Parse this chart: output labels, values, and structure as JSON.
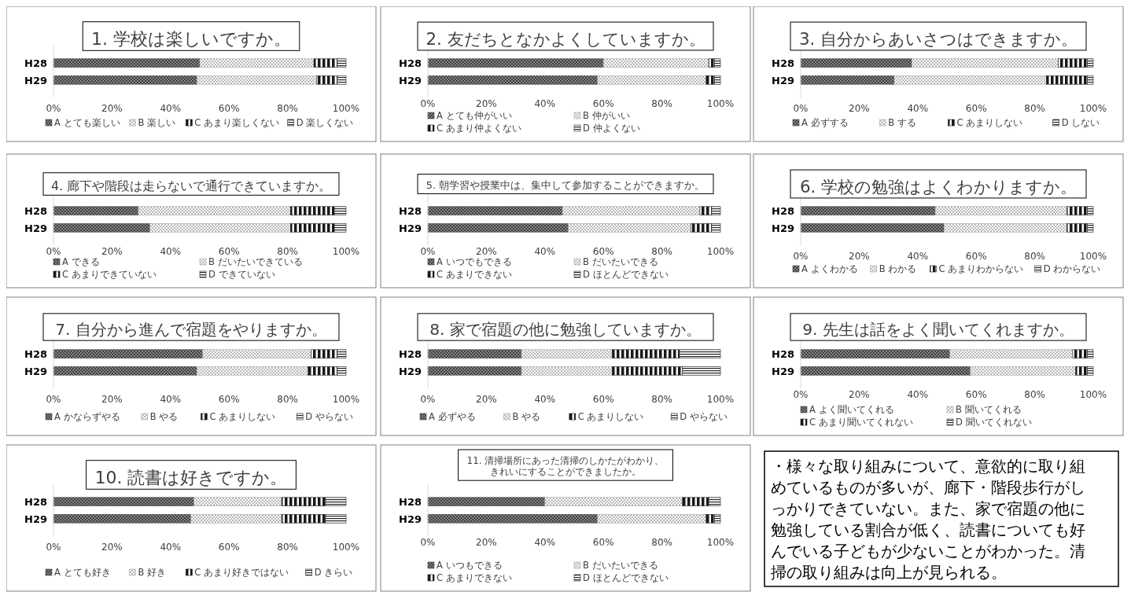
{
  "chart_data": [
    {
      "type": "bar",
      "orientation": "horizontal",
      "stacked": true,
      "title": "1. 学校は楽しいですか。",
      "categories": [
        "H28",
        "H29"
      ],
      "legend": "bottom",
      "xlim": [
        0,
        100
      ],
      "xticks": [
        {
          "value": 0,
          "label": "0%"
        },
        {
          "value": 20,
          "label": "20%"
        },
        {
          "value": 40,
          "label": "40%"
        },
        {
          "value": 60,
          "label": "60%"
        },
        {
          "value": 80,
          "label": "80%"
        },
        {
          "value": 100,
          "label": "100%"
        }
      ],
      "series": [
        {
          "name": "A とても楽しい",
          "color": "#404040",
          "values": [
            50,
            49
          ]
        },
        {
          "name": "B 楽しい",
          "color": "#a6a6a6",
          "values": [
            39,
            41
          ]
        },
        {
          "name": "C あまり楽しくない",
          "color": "#1a1a1a",
          "values": [
            8,
            7
          ]
        },
        {
          "name": "D 楽しくない",
          "color": "#262626",
          "values": [
            3,
            3
          ]
        }
      ]
    },
    {
      "type": "bar",
      "orientation": "horizontal",
      "stacked": true,
      "title": "2. 友だちとなかよくしていますか。",
      "categories": [
        "H28",
        "H29"
      ],
      "legend": "bottom",
      "xlim": [
        0,
        100
      ],
      "xticks": [
        {
          "value": 0,
          "label": "0%"
        },
        {
          "value": 20,
          "label": "20%"
        },
        {
          "value": 40,
          "label": "40%"
        },
        {
          "value": 60,
          "label": "60%"
        },
        {
          "value": 80,
          "label": "80%"
        },
        {
          "value": 100,
          "label": "100%"
        }
      ],
      "series": [
        {
          "name": "A とても仲がいい",
          "color": "#404040",
          "values": [
            60,
            58
          ]
        },
        {
          "name": "B 仲がいい",
          "color": "#a6a6a6",
          "values": [
            36,
            37
          ]
        },
        {
          "name": "C あまり仲よくない",
          "color": "#1a1a1a",
          "values": [
            2,
            3
          ]
        },
        {
          "name": "D 仲よくない",
          "color": "#262626",
          "values": [
            2,
            2
          ]
        }
      ]
    },
    {
      "type": "bar",
      "orientation": "horizontal",
      "stacked": true,
      "title": "3. 自分からあいさつはできますか。",
      "categories": [
        "H28",
        "H29"
      ],
      "legend": "bottom",
      "xlim": [
        0,
        100
      ],
      "xticks": [
        {
          "value": 0,
          "label": "0%"
        },
        {
          "value": 20,
          "label": "20%"
        },
        {
          "value": 40,
          "label": "40%"
        },
        {
          "value": 60,
          "label": "60%"
        },
        {
          "value": 80,
          "label": "80%"
        },
        {
          "value": 100,
          "label": "100%"
        }
      ],
      "series": [
        {
          "name": "A 必ずする",
          "color": "#404040",
          "values": [
            38,
            32
          ]
        },
        {
          "name": "B する",
          "color": "#a6a6a6",
          "values": [
            50,
            52
          ]
        },
        {
          "name": "C あまりしない",
          "color": "#1a1a1a",
          "values": [
            10,
            14
          ]
        },
        {
          "name": "D しない",
          "color": "#262626",
          "values": [
            2,
            2
          ]
        }
      ]
    },
    {
      "type": "bar",
      "orientation": "horizontal",
      "stacked": true,
      "title": "4. 廊下や階段は走らないで通行できていますか。",
      "categories": [
        "H28",
        "H29"
      ],
      "legend": "bottom",
      "xlim": [
        0,
        100
      ],
      "xticks": [
        {
          "value": 0,
          "label": "0%"
        },
        {
          "value": 20,
          "label": "20%"
        },
        {
          "value": 40,
          "label": "40%"
        },
        {
          "value": 60,
          "label": "60%"
        },
        {
          "value": 80,
          "label": "80%"
        },
        {
          "value": 100,
          "label": "100%"
        }
      ],
      "series": [
        {
          "name": "A できる",
          "color": "#404040",
          "values": [
            29,
            33
          ]
        },
        {
          "name": "B だいたいできている",
          "color": "#a6a6a6",
          "values": [
            52,
            48
          ]
        },
        {
          "name": "C あまりできていない",
          "color": "#1a1a1a",
          "values": [
            15,
            15
          ]
        },
        {
          "name": "D できていない",
          "color": "#262626",
          "values": [
            4,
            4
          ]
        }
      ]
    },
    {
      "type": "bar",
      "orientation": "horizontal",
      "stacked": true,
      "title": "5. 朝学習や授業中は、集中して参加することができますか。",
      "categories": [
        "H28",
        "H29"
      ],
      "legend": "bottom",
      "xlim": [
        0,
        100
      ],
      "xticks": [
        {
          "value": 0,
          "label": "0%"
        },
        {
          "value": 20,
          "label": "20%"
        },
        {
          "value": 40,
          "label": "40%"
        },
        {
          "value": 60,
          "label": "60%"
        },
        {
          "value": 80,
          "label": "80%"
        },
        {
          "value": 100,
          "label": "100%"
        }
      ],
      "series": [
        {
          "name": "A いつでもできる",
          "color": "#404040",
          "values": [
            46,
            48
          ]
        },
        {
          "name": "B だいたいできる",
          "color": "#a6a6a6",
          "values": [
            47,
            42
          ]
        },
        {
          "name": "C あまりできない",
          "color": "#1a1a1a",
          "values": [
            4,
            7
          ]
        },
        {
          "name": "D ほとんどできない",
          "color": "#262626",
          "values": [
            3,
            3
          ]
        }
      ]
    },
    {
      "type": "bar",
      "orientation": "horizontal",
      "stacked": true,
      "title": "6. 学校の勉強はよくわかりますか。",
      "categories": [
        "H28",
        "H29"
      ],
      "legend": "bottom",
      "xlim": [
        0,
        100
      ],
      "xticks": [
        {
          "value": 0,
          "label": "0%"
        },
        {
          "value": 20,
          "label": "20%"
        },
        {
          "value": 40,
          "label": "40%"
        },
        {
          "value": 60,
          "label": "60%"
        },
        {
          "value": 80,
          "label": "80%"
        },
        {
          "value": 100,
          "label": "100%"
        }
      ],
      "series": [
        {
          "name": "A よくわかる",
          "color": "#404040",
          "values": [
            46,
            49
          ]
        },
        {
          "name": "B わかる",
          "color": "#a6a6a6",
          "values": [
            45,
            42
          ]
        },
        {
          "name": "C あまりわからない",
          "color": "#1a1a1a",
          "values": [
            7,
            7
          ]
        },
        {
          "name": "D わからない",
          "color": "#262626",
          "values": [
            2,
            2
          ]
        }
      ]
    },
    {
      "type": "bar",
      "orientation": "horizontal",
      "stacked": true,
      "title": "7. 自分から進んで宿題をやりますか。",
      "categories": [
        "H28",
        "H29"
      ],
      "legend": "bottom",
      "xlim": [
        0,
        100
      ],
      "xticks": [
        {
          "value": 0,
          "label": "0%"
        },
        {
          "value": 20,
          "label": "20%"
        },
        {
          "value": 40,
          "label": "40%"
        },
        {
          "value": 60,
          "label": "60%"
        },
        {
          "value": 80,
          "label": "80%"
        },
        {
          "value": 100,
          "label": "100%"
        }
      ],
      "series": [
        {
          "name": "A かならずやる",
          "color": "#404040",
          "values": [
            51,
            49
          ]
        },
        {
          "name": "B やる",
          "color": "#a6a6a6",
          "values": [
            37,
            38
          ]
        },
        {
          "name": "C あまりしない",
          "color": "#1a1a1a",
          "values": [
            9,
            10
          ]
        },
        {
          "name": "D やらない",
          "color": "#262626",
          "values": [
            3,
            3
          ]
        }
      ]
    },
    {
      "type": "bar",
      "orientation": "horizontal",
      "stacked": true,
      "title": "8. 家で宿題の他に勉強していますか。",
      "categories": [
        "H28",
        "H29"
      ],
      "legend": "bottom",
      "xlim": [
        0,
        100
      ],
      "xticks": [
        {
          "value": 0,
          "label": "0%"
        },
        {
          "value": 20,
          "label": "20%"
        },
        {
          "value": 40,
          "label": "40%"
        },
        {
          "value": 60,
          "label": "60%"
        },
        {
          "value": 80,
          "label": "80%"
        },
        {
          "value": 100,
          "label": "100%"
        }
      ],
      "series": [
        {
          "name": "A 必ずやる",
          "color": "#404040",
          "values": [
            32,
            32
          ]
        },
        {
          "name": "B やる",
          "color": "#a6a6a6",
          "values": [
            31,
            31
          ]
        },
        {
          "name": "C あまりしない",
          "color": "#1a1a1a",
          "values": [
            23,
            24
          ]
        },
        {
          "name": "D やらない",
          "color": "#262626",
          "values": [
            14,
            13
          ]
        }
      ]
    },
    {
      "type": "bar",
      "orientation": "horizontal",
      "stacked": true,
      "title": "9. 先生は話をよく聞いてくれますか。",
      "categories": [
        "H28",
        "H29"
      ],
      "legend": "bottom",
      "xlim": [
        0,
        100
      ],
      "xticks": [
        {
          "value": 0,
          "label": "0%"
        },
        {
          "value": 20,
          "label": "20%"
        },
        {
          "value": 40,
          "label": "40%"
        },
        {
          "value": 60,
          "label": "60%"
        },
        {
          "value": 80,
          "label": "80%"
        },
        {
          "value": 100,
          "label": "100%"
        }
      ],
      "series": [
        {
          "name": "A よく聞いてくれる",
          "color": "#404040",
          "values": [
            51,
            58
          ]
        },
        {
          "name": "B 聞いてくれる",
          "color": "#a6a6a6",
          "values": [
            42,
            36
          ]
        },
        {
          "name": "C あまり聞いてくれない",
          "color": "#1a1a1a",
          "values": [
            5,
            4
          ]
        },
        {
          "name": "D 聞いてくれない",
          "color": "#262626",
          "values": [
            2,
            2
          ]
        }
      ]
    },
    {
      "type": "bar",
      "orientation": "horizontal",
      "stacked": true,
      "title": "10. 読書は好きですか。",
      "categories": [
        "H28",
        "H29"
      ],
      "legend": "bottom",
      "xlim": [
        0,
        100
      ],
      "xticks": [
        {
          "value": 0,
          "label": "0%"
        },
        {
          "value": 20,
          "label": "20%"
        },
        {
          "value": 40,
          "label": "40%"
        },
        {
          "value": 60,
          "label": "60%"
        },
        {
          "value": 80,
          "label": "80%"
        },
        {
          "value": 100,
          "label": "100%"
        }
      ],
      "series": [
        {
          "name": "A とても好き",
          "color": "#404040",
          "values": [
            48,
            47
          ]
        },
        {
          "name": "B 好き",
          "color": "#a6a6a6",
          "values": [
            30,
            31
          ]
        },
        {
          "name": "C あまり好きではない",
          "color": "#1a1a1a",
          "values": [
            15,
            15
          ]
        },
        {
          "name": "D きらい",
          "color": "#262626",
          "values": [
            7,
            7
          ]
        }
      ]
    },
    {
      "type": "bar",
      "orientation": "horizontal",
      "stacked": true,
      "title": "11. 清掃場所にあった清掃のしかたがわかり、きれいにすることができましたか。",
      "categories": [
        "H28",
        "H29"
      ],
      "legend": "bottom",
      "xlim": [
        0,
        100
      ],
      "xticks": [
        {
          "value": 0,
          "label": "0%"
        },
        {
          "value": 20,
          "label": "20%"
        },
        {
          "value": 40,
          "label": "40%"
        },
        {
          "value": 60,
          "label": "60%"
        },
        {
          "value": 80,
          "label": "80%"
        },
        {
          "value": 100,
          "label": "100%"
        }
      ],
      "series": [
        {
          "name": "A いつもできる",
          "color": "#404040",
          "values": [
            40,
            58
          ]
        },
        {
          "name": "B だいたいできる",
          "color": "#a6a6a6",
          "values": [
            47,
            37
          ]
        },
        {
          "name": "C あまりできない",
          "color": "#1a1a1a",
          "values": [
            9,
            3
          ]
        },
        {
          "name": "D ほとんどできない",
          "color": "#262626",
          "values": [
            4,
            2
          ]
        }
      ]
    },
    {
      "type": "other",
      "annotations": [
        "・様々な取り組みについて、意欲的に取り組めているものが多いが、廊下・階段歩行がしっかりできていない。また、家で宿題の他に勉強している割合が低く、読書についても好んでいる子どもが少ないことがわかった。清掃の取り組みは向上が見られる。"
      ]
    }
  ]
}
